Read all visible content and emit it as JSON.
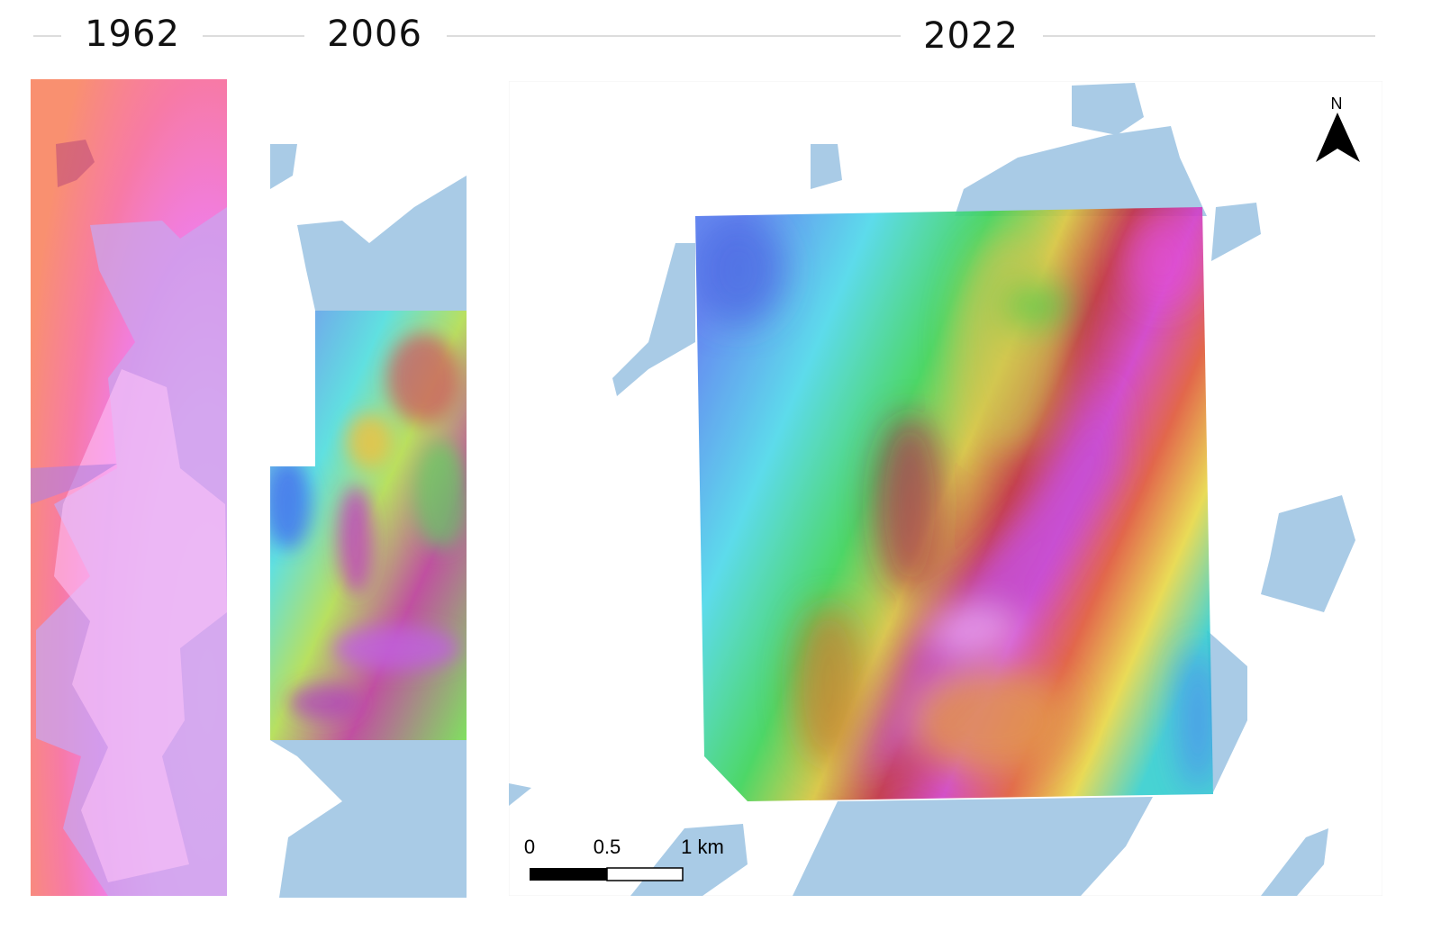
{
  "panels": [
    {
      "year": "1962"
    },
    {
      "year": "2006"
    },
    {
      "year": "2022"
    }
  ],
  "north_arrow": {
    "label": "N"
  },
  "scale_bar": {
    "labels": [
      "0",
      "0.5",
      "1 km"
    ]
  }
}
